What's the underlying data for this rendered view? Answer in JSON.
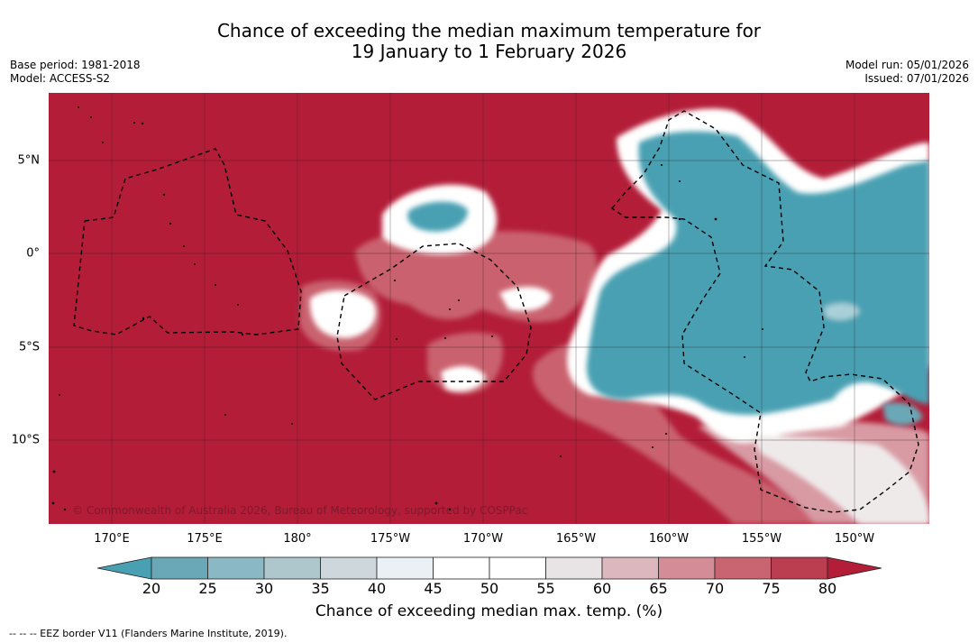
{
  "title": {
    "line1": "Chance of exceeding the median maximum temperature for",
    "line2": "19 January to 1 February 2026"
  },
  "meta_left": {
    "base_period": "Base period: 1981-2018",
    "model": "Model: ACCESS-S2"
  },
  "meta_right": {
    "model_run": "Model run: 05/01/2026",
    "issued": "Issued: 07/01/2026"
  },
  "map": {
    "lon_labels": [
      "170°E",
      "175°E",
      "180°",
      "175°W",
      "170°W",
      "165°W",
      "160°W",
      "155°W",
      "150°W"
    ],
    "lat_labels": [
      "5°N",
      "0°",
      "5°S",
      "10°S"
    ],
    "copyright": "© Commonwealth of Australia 2026, Bureau of Meteorology, supported by COSPPac",
    "colors": {
      "warm": "#b31d38",
      "cool": "#48a0b2"
    }
  },
  "colorbar": {
    "ticks": [
      "20",
      "25",
      "30",
      "35",
      "40",
      "45",
      "50",
      "55",
      "60",
      "65",
      "70",
      "75",
      "80"
    ],
    "colors": [
      "#48a0b2",
      "#6aa8b7",
      "#8ab8c4",
      "#aec7cd",
      "#ced8dc",
      "#eaf0f3",
      "#ffffff",
      "#ffffff",
      "#e8e4e6",
      "#ddb7be",
      "#d48d96",
      "#c86570",
      "#bb3e50",
      "#b31d38"
    ],
    "label": "Chance of exceeding median max. temp. (%)"
  },
  "legend": {
    "eez": "--  --  -- EEZ border V11 (Flanders Marine Institute, 2019)."
  }
}
